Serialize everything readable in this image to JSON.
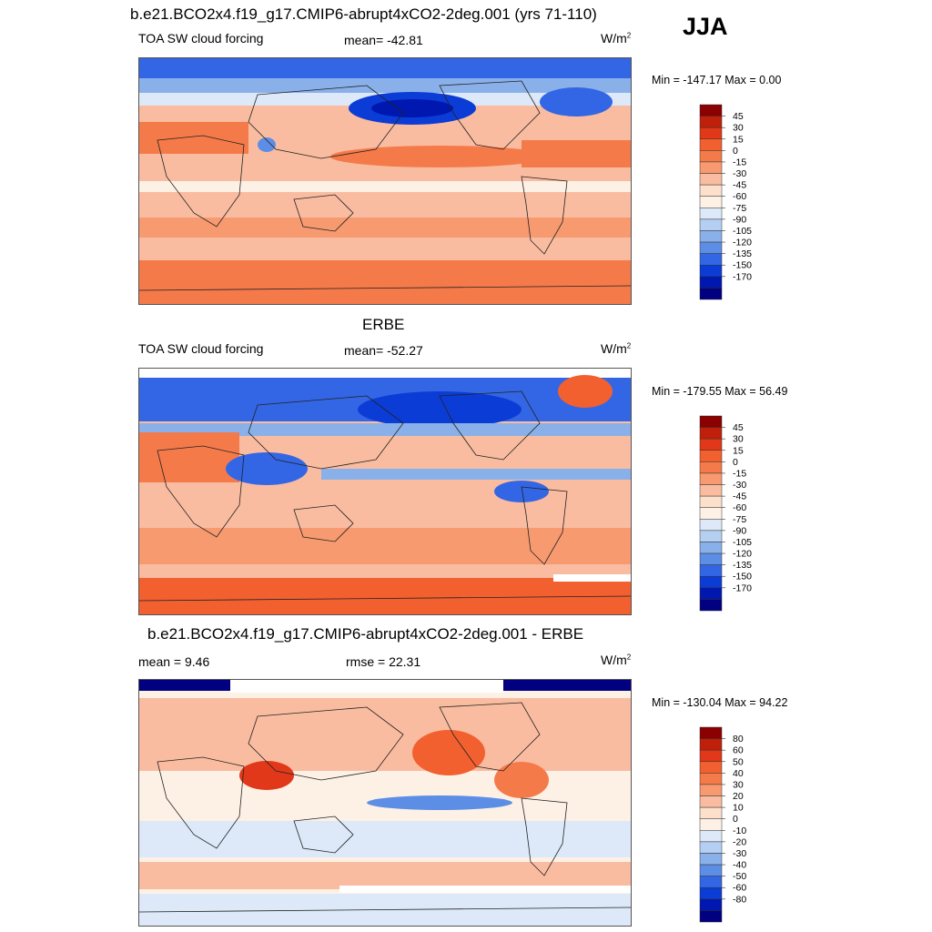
{
  "header": {
    "season": "JJA"
  },
  "chart_data": [
    {
      "type": "heatmap",
      "title": "b.e21.BCO2x4.f19_g17.CMIP6-abrupt4xCO2-2deg.001 (yrs 71-110)",
      "left_label": "TOA SW cloud forcing",
      "center_label": "mean= -42.81",
      "units": "W/m",
      "units_exp": "2",
      "min_max": "Min = -147.17 Max =   0.00",
      "colorbar_levels": [
        "45",
        "30",
        "15",
        "0",
        "-15",
        "-30",
        "-45",
        "-60",
        "-75",
        "-90",
        "-105",
        "-120",
        "-135",
        "-150",
        "-170"
      ],
      "colors": [
        "#8b0000",
        "#c0200a",
        "#e03818",
        "#f26030",
        "#f57a4a",
        "#f79a70",
        "#f9bca0",
        "#fce0cc",
        "#fdf1e6",
        "#dde9f8",
        "#b4cff1",
        "#8ab0ea",
        "#5d8ee6",
        "#3366e4",
        "#0b3cd6",
        "#0018b0",
        "#000080"
      ]
    },
    {
      "type": "heatmap",
      "title": "ERBE",
      "left_label": "TOA SW cloud forcing",
      "center_label": "mean= -52.27",
      "units": "W/m",
      "units_exp": "2",
      "min_max": "Min = -179.55 Max =  56.49",
      "colorbar_levels": [
        "45",
        "30",
        "15",
        "0",
        "-15",
        "-30",
        "-45",
        "-60",
        "-75",
        "-90",
        "-105",
        "-120",
        "-135",
        "-150",
        "-170"
      ],
      "colors": [
        "#8b0000",
        "#c0200a",
        "#e03818",
        "#f26030",
        "#f57a4a",
        "#f79a70",
        "#f9bca0",
        "#fce0cc",
        "#fdf1e6",
        "#dde9f8",
        "#b4cff1",
        "#8ab0ea",
        "#5d8ee6",
        "#3366e4",
        "#0b3cd6",
        "#0018b0",
        "#000080"
      ]
    },
    {
      "type": "heatmap",
      "title": "b.e21.BCO2x4.f19_g17.CMIP6-abrupt4xCO2-2deg.001 - ERBE",
      "left_label": "mean =   9.46",
      "center_label": "rmse =  22.31",
      "units": "W/m",
      "units_exp": "2",
      "min_max": "Min = -130.04 Max =  94.22",
      "colorbar_levels": [
        "80",
        "60",
        "50",
        "40",
        "30",
        "20",
        "10",
        "0",
        "-10",
        "-20",
        "-30",
        "-40",
        "-50",
        "-60",
        "-80"
      ],
      "colors": [
        "#8b0000",
        "#c0200a",
        "#e03818",
        "#f26030",
        "#f57a4a",
        "#f79a70",
        "#f9bca0",
        "#fce0cc",
        "#fdf1e6",
        "#dde9f8",
        "#b4cff1",
        "#8ab0ea",
        "#5d8ee6",
        "#3366e4",
        "#0b3cd6",
        "#0018b0",
        "#000080"
      ]
    }
  ]
}
